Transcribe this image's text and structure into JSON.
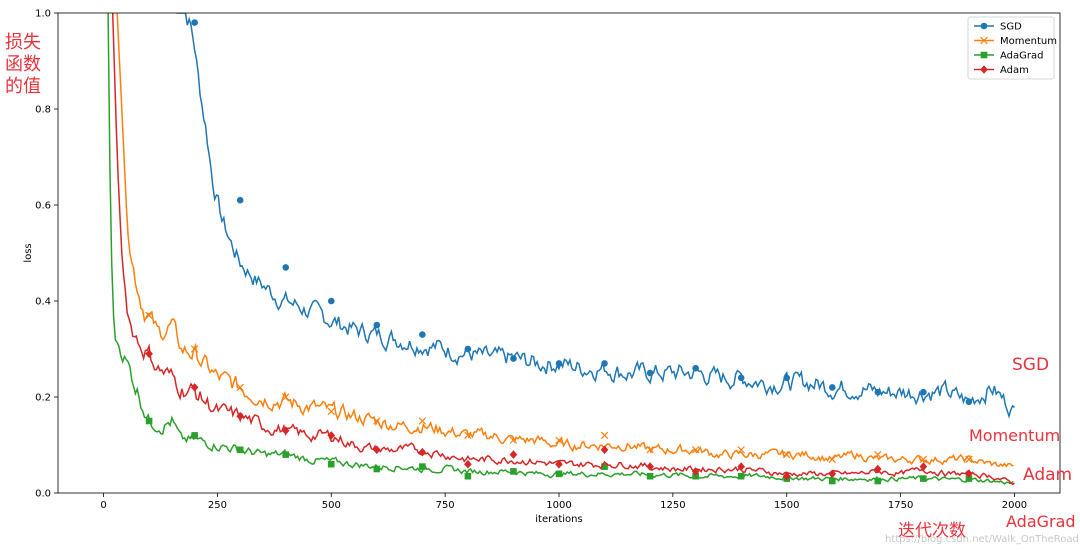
{
  "chart_data": {
    "type": "line",
    "xlabel": "iterations",
    "ylabel": "loss",
    "xlim": [
      -100,
      2100
    ],
    "ylim": [
      0,
      1.0
    ],
    "xticks": [
      0,
      250,
      500,
      750,
      1000,
      1250,
      1500,
      1750,
      2000
    ],
    "yticks": [
      0.0,
      0.2,
      0.4,
      0.6,
      0.8,
      1.0
    ],
    "legend_position": "top-right",
    "grid": false,
    "series": [
      {
        "name": "SGD",
        "color": "#1f77b4",
        "marker": "circle",
        "points": [
          [
            160,
            1.0
          ],
          [
            180,
            1.0
          ],
          [
            190,
            0.98
          ],
          [
            200,
            0.93
          ],
          [
            210,
            0.85
          ],
          [
            225,
            0.76
          ],
          [
            240,
            0.65
          ],
          [
            260,
            0.57
          ],
          [
            280,
            0.52
          ],
          [
            300,
            0.48
          ],
          [
            340,
            0.44
          ],
          [
            380,
            0.41
          ],
          [
            400,
            0.4
          ],
          [
            450,
            0.38
          ],
          [
            500,
            0.36
          ],
          [
            550,
            0.34
          ],
          [
            600,
            0.33
          ],
          [
            650,
            0.32
          ],
          [
            700,
            0.31
          ],
          [
            750,
            0.3
          ],
          [
            800,
            0.29
          ],
          [
            850,
            0.28
          ],
          [
            900,
            0.28
          ],
          [
            950,
            0.27
          ],
          [
            1000,
            0.27
          ],
          [
            1050,
            0.26
          ],
          [
            1100,
            0.26
          ],
          [
            1150,
            0.25
          ],
          [
            1200,
            0.25
          ],
          [
            1250,
            0.25
          ],
          [
            1300,
            0.25
          ],
          [
            1350,
            0.24
          ],
          [
            1400,
            0.24
          ],
          [
            1450,
            0.23
          ],
          [
            1500,
            0.23
          ],
          [
            1550,
            0.23
          ],
          [
            1600,
            0.22
          ],
          [
            1650,
            0.22
          ],
          [
            1700,
            0.21
          ],
          [
            1750,
            0.21
          ],
          [
            1800,
            0.21
          ],
          [
            1850,
            0.21
          ],
          [
            1900,
            0.19
          ],
          [
            1950,
            0.22
          ],
          [
            2000,
            0.17
          ]
        ],
        "markers_at": [
          [
            200,
            0.98
          ],
          [
            300,
            0.61
          ],
          [
            400,
            0.47
          ],
          [
            500,
            0.4
          ],
          [
            600,
            0.35
          ],
          [
            700,
            0.33
          ],
          [
            800,
            0.3
          ],
          [
            900,
            0.28
          ],
          [
            1000,
            0.27
          ],
          [
            1100,
            0.27
          ],
          [
            1200,
            0.25
          ],
          [
            1300,
            0.26
          ],
          [
            1400,
            0.24
          ],
          [
            1500,
            0.24
          ],
          [
            1600,
            0.22
          ],
          [
            1700,
            0.21
          ],
          [
            1800,
            0.21
          ],
          [
            1900,
            0.19
          ]
        ]
      },
      {
        "name": "Momentum",
        "color": "#ff7f0e",
        "marker": "x",
        "points": [
          [
            30,
            1.0
          ],
          [
            40,
            0.8
          ],
          [
            50,
            0.6
          ],
          [
            60,
            0.5
          ],
          [
            70,
            0.45
          ],
          [
            80,
            0.41
          ],
          [
            90,
            0.38
          ],
          [
            100,
            0.37
          ],
          [
            120,
            0.33
          ],
          [
            150,
            0.35
          ],
          [
            170,
            0.3
          ],
          [
            200,
            0.29
          ],
          [
            250,
            0.24
          ],
          [
            300,
            0.22
          ],
          [
            350,
            0.2
          ],
          [
            400,
            0.19
          ],
          [
            450,
            0.18
          ],
          [
            500,
            0.17
          ],
          [
            550,
            0.16
          ],
          [
            600,
            0.15
          ],
          [
            650,
            0.14
          ],
          [
            700,
            0.14
          ],
          [
            750,
            0.13
          ],
          [
            800,
            0.12
          ],
          [
            850,
            0.12
          ],
          [
            900,
            0.11
          ],
          [
            950,
            0.11
          ],
          [
            1000,
            0.1
          ],
          [
            1050,
            0.1
          ],
          [
            1100,
            0.1
          ],
          [
            1150,
            0.1
          ],
          [
            1200,
            0.09
          ],
          [
            1250,
            0.09
          ],
          [
            1300,
            0.09
          ],
          [
            1350,
            0.08
          ],
          [
            1400,
            0.08
          ],
          [
            1450,
            0.08
          ],
          [
            1500,
            0.08
          ],
          [
            1550,
            0.08
          ],
          [
            1600,
            0.07
          ],
          [
            1650,
            0.08
          ],
          [
            1700,
            0.07
          ],
          [
            1750,
            0.07
          ],
          [
            1800,
            0.07
          ],
          [
            1850,
            0.07
          ],
          [
            1900,
            0.07
          ],
          [
            1950,
            0.06
          ],
          [
            2000,
            0.055
          ]
        ],
        "markers_at": [
          [
            100,
            0.37
          ],
          [
            200,
            0.3
          ],
          [
            300,
            0.22
          ],
          [
            400,
            0.2
          ],
          [
            500,
            0.17
          ],
          [
            600,
            0.15
          ],
          [
            700,
            0.15
          ],
          [
            800,
            0.12
          ],
          [
            900,
            0.11
          ],
          [
            1000,
            0.11
          ],
          [
            1100,
            0.12
          ],
          [
            1200,
            0.09
          ],
          [
            1300,
            0.09
          ],
          [
            1400,
            0.09
          ],
          [
            1500,
            0.08
          ],
          [
            1600,
            0.07
          ],
          [
            1700,
            0.08
          ],
          [
            1800,
            0.07
          ],
          [
            1900,
            0.07
          ]
        ]
      },
      {
        "name": "AdaGrad",
        "color": "#2ca02c",
        "marker": "square",
        "points": [
          [
            10,
            1.0
          ],
          [
            15,
            0.6
          ],
          [
            20,
            0.4
          ],
          [
            25,
            0.32
          ],
          [
            40,
            0.3
          ],
          [
            60,
            0.25
          ],
          [
            80,
            0.2
          ],
          [
            100,
            0.15
          ],
          [
            130,
            0.14
          ],
          [
            150,
            0.15
          ],
          [
            170,
            0.11
          ],
          [
            200,
            0.11
          ],
          [
            250,
            0.1
          ],
          [
            300,
            0.09
          ],
          [
            350,
            0.08
          ],
          [
            400,
            0.08
          ],
          [
            450,
            0.07
          ],
          [
            500,
            0.065
          ],
          [
            550,
            0.06
          ],
          [
            600,
            0.055
          ],
          [
            650,
            0.055
          ],
          [
            700,
            0.05
          ],
          [
            750,
            0.05
          ],
          [
            800,
            0.045
          ],
          [
            850,
            0.045
          ],
          [
            900,
            0.045
          ],
          [
            950,
            0.04
          ],
          [
            1000,
            0.04
          ],
          [
            1050,
            0.04
          ],
          [
            1100,
            0.04
          ],
          [
            1150,
            0.04
          ],
          [
            1200,
            0.038
          ],
          [
            1250,
            0.038
          ],
          [
            1300,
            0.035
          ],
          [
            1350,
            0.035
          ],
          [
            1400,
            0.035
          ],
          [
            1450,
            0.035
          ],
          [
            1500,
            0.033
          ],
          [
            1550,
            0.03
          ],
          [
            1600,
            0.03
          ],
          [
            1650,
            0.03
          ],
          [
            1700,
            0.03
          ],
          [
            1750,
            0.03
          ],
          [
            1800,
            0.03
          ],
          [
            1850,
            0.028
          ],
          [
            1900,
            0.028
          ],
          [
            1950,
            0.025
          ],
          [
            2000,
            0.02
          ]
        ],
        "markers_at": [
          [
            100,
            0.15
          ],
          [
            200,
            0.12
          ],
          [
            300,
            0.09
          ],
          [
            400,
            0.08
          ],
          [
            500,
            0.06
          ],
          [
            600,
            0.05
          ],
          [
            700,
            0.055
          ],
          [
            800,
            0.035
          ],
          [
            900,
            0.045
          ],
          [
            1000,
            0.04
          ],
          [
            1100,
            0.055
          ],
          [
            1200,
            0.035
          ],
          [
            1300,
            0.035
          ],
          [
            1400,
            0.035
          ],
          [
            1500,
            0.03
          ],
          [
            1600,
            0.025
          ],
          [
            1700,
            0.025
          ],
          [
            1800,
            0.03
          ],
          [
            1900,
            0.03
          ]
        ]
      },
      {
        "name": "Adam",
        "color": "#d62728",
        "marker": "diamond",
        "points": [
          [
            20,
            1.0
          ],
          [
            30,
            0.7
          ],
          [
            40,
            0.5
          ],
          [
            50,
            0.4
          ],
          [
            60,
            0.35
          ],
          [
            80,
            0.31
          ],
          [
            100,
            0.29
          ],
          [
            120,
            0.26
          ],
          [
            150,
            0.24
          ],
          [
            170,
            0.22
          ],
          [
            200,
            0.21
          ],
          [
            250,
            0.17
          ],
          [
            300,
            0.16
          ],
          [
            350,
            0.14
          ],
          [
            400,
            0.13
          ],
          [
            450,
            0.12
          ],
          [
            500,
            0.12
          ],
          [
            550,
            0.1
          ],
          [
            600,
            0.09
          ],
          [
            650,
            0.09
          ],
          [
            700,
            0.09
          ],
          [
            750,
            0.08
          ],
          [
            800,
            0.07
          ],
          [
            850,
            0.07
          ],
          [
            900,
            0.07
          ],
          [
            950,
            0.065
          ],
          [
            1000,
            0.06
          ],
          [
            1050,
            0.06
          ],
          [
            1100,
            0.06
          ],
          [
            1150,
            0.06
          ],
          [
            1200,
            0.055
          ],
          [
            1250,
            0.05
          ],
          [
            1300,
            0.05
          ],
          [
            1350,
            0.05
          ],
          [
            1400,
            0.05
          ],
          [
            1450,
            0.045
          ],
          [
            1500,
            0.04
          ],
          [
            1550,
            0.04
          ],
          [
            1600,
            0.04
          ],
          [
            1650,
            0.04
          ],
          [
            1700,
            0.045
          ],
          [
            1750,
            0.04
          ],
          [
            1800,
            0.05
          ],
          [
            1850,
            0.04
          ],
          [
            1900,
            0.04
          ],
          [
            1950,
            0.035
          ],
          [
            2000,
            0.02
          ]
        ],
        "markers_at": [
          [
            100,
            0.29
          ],
          [
            200,
            0.22
          ],
          [
            300,
            0.16
          ],
          [
            400,
            0.13
          ],
          [
            500,
            0.12
          ],
          [
            600,
            0.09
          ],
          [
            700,
            0.085
          ],
          [
            800,
            0.06
          ],
          [
            900,
            0.08
          ],
          [
            1000,
            0.06
          ],
          [
            1100,
            0.09
          ],
          [
            1200,
            0.055
          ],
          [
            1300,
            0.045
          ],
          [
            1400,
            0.055
          ],
          [
            1500,
            0.035
          ],
          [
            1600,
            0.04
          ],
          [
            1700,
            0.05
          ],
          [
            1800,
            0.055
          ],
          [
            1900,
            0.04
          ]
        ]
      }
    ]
  },
  "annotations": {
    "ylabel_cn": [
      "损失",
      "函数",
      "的值"
    ],
    "xlabel_cn": "迭代次数",
    "series_labels": [
      {
        "text": "SGD",
        "color": "#e8333c"
      },
      {
        "text": "Momentum",
        "color": "#e8333c"
      },
      {
        "text": "Adam",
        "color": "#e8333c"
      },
      {
        "text": "AdaGrad",
        "color": "#e8333c"
      }
    ],
    "watermark": "https://blog.csdn.net/Walk_OnTheRoad"
  }
}
